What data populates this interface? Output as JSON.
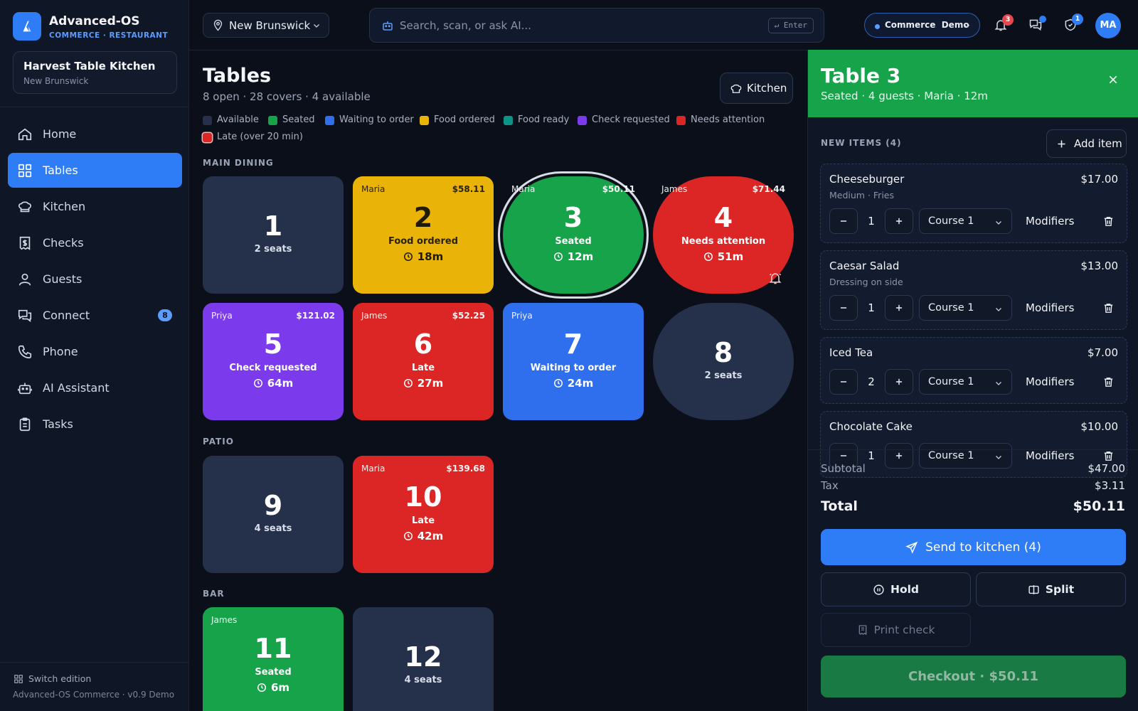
{
  "brand": {
    "name": "Advanced-OS",
    "subtitle": "COMMERCE · RESTAURANT",
    "logo_icon": "logo-mark-icon"
  },
  "location_card": {
    "name": "Harvest Table Kitchen",
    "sub": "New Brunswick"
  },
  "nav": [
    {
      "label": "Home",
      "icon": "home-icon"
    },
    {
      "label": "Tables",
      "icon": "grid-icon",
      "active": true
    },
    {
      "label": "Kitchen",
      "icon": "chef-hat-icon"
    },
    {
      "label": "Checks",
      "icon": "receipt-icon"
    },
    {
      "label": "Guests",
      "icon": "user-icon"
    },
    {
      "label": "Connect",
      "icon": "chat-icon",
      "badge": "8"
    },
    {
      "label": "Phone",
      "icon": "phone-icon"
    },
    {
      "label": "AI Assistant",
      "icon": "robot-icon"
    },
    {
      "label": "Tasks",
      "icon": "clipboard-icon"
    }
  ],
  "sidebar_footer": {
    "switch_edition": "Switch edition",
    "version": "Advanced-OS Commerce · v0.9 Demo"
  },
  "topbar": {
    "location_select": "New Brunswick",
    "search_placeholder": "Search, scan, or ask AI...",
    "search_value": "",
    "enter_hint": "↵ Enter",
    "demo_pill": "Commerce  Demo",
    "notifications_badge": "3",
    "security_badge": "1",
    "avatar_initials": "MA"
  },
  "page": {
    "title": "Tables",
    "subtitle": "8 open · 28 covers · 4 available",
    "kitchen_button": "Kitchen"
  },
  "colors": {
    "available": "#25304a",
    "seated": "#17a34a",
    "waiting": "#2f6fed",
    "food_ordered": "#e9b307",
    "food_ready": "#0d9488",
    "check_requested": "#7c3aed",
    "needs_attention": "#dc2626",
    "late": "#dc2626"
  },
  "legend": [
    {
      "label": "Available",
      "color": "#25304a"
    },
    {
      "label": "Seated",
      "color": "#17a34a"
    },
    {
      "label": "Waiting to order",
      "color": "#2f6fed"
    },
    {
      "label": "Food ordered",
      "color": "#e9b307"
    },
    {
      "label": "Food ready",
      "color": "#0d9488"
    },
    {
      "label": "Check requested",
      "color": "#7c3aed"
    },
    {
      "label": "Needs attention",
      "color": "#dc2626"
    },
    {
      "label": "Late (over 20 min)",
      "color": "#dc2626"
    }
  ],
  "sections": [
    {
      "label": "MAIN DINING"
    },
    {
      "label": "PATIO"
    },
    {
      "label": "BAR"
    }
  ],
  "tables": [
    {
      "number": "1",
      "seats": "2 seats",
      "state": "available"
    },
    {
      "number": "2",
      "server": "Maria",
      "amount": "$58.11",
      "status": "Food ordered",
      "time": "18m",
      "state": "food_ordered"
    },
    {
      "number": "3",
      "server": "Maria",
      "amount": "$50.11",
      "status": "Seated",
      "time": "12m",
      "state": "seated",
      "selected": true
    },
    {
      "number": "4",
      "server": "James",
      "amount": "$71.44",
      "status": "Needs attention",
      "time": "51m",
      "state": "needs_attention",
      "alert_icon": "bell-alert-icon"
    },
    {
      "number": "5",
      "server": "Priya",
      "amount": "$121.02",
      "status": "Check requested",
      "time": "64m",
      "state": "check_requested"
    },
    {
      "number": "6",
      "server": "James",
      "amount": "$52.25",
      "status": "Late",
      "time": "27m",
      "state": "late"
    },
    {
      "number": "7",
      "server": "Priya",
      "amount": "",
      "status": "Waiting to order",
      "time": "24m",
      "state": "waiting"
    },
    {
      "number": "8",
      "seats": "2 seats",
      "state": "available"
    },
    {
      "number": "9",
      "seats": "4 seats",
      "state": "available"
    },
    {
      "number": "10",
      "server": "Maria",
      "amount": "$139.68",
      "status": "Late",
      "time": "42m",
      "state": "late"
    },
    {
      "number": "11",
      "server": "James",
      "amount": "",
      "status": "Seated",
      "time": "6m",
      "state": "seated"
    },
    {
      "number": "12",
      "seats": "4 seats",
      "state": "available"
    }
  ],
  "panel": {
    "title": "Table 3",
    "subtitle": "Seated · 4 guests · Maria · 12m",
    "new_items_label": "NEW ITEMS (4)",
    "add_item": "Add item",
    "items": [
      {
        "name": "Cheeseburger",
        "price": "$17.00",
        "mods": "Medium · Fries",
        "qty": "1",
        "course": "Course 1",
        "modifiers_label": "Modifiers"
      },
      {
        "name": "Caesar Salad",
        "price": "$13.00",
        "mods": "Dressing on side",
        "qty": "1",
        "course": "Course 1",
        "modifiers_label": "Modifiers"
      },
      {
        "name": "Iced Tea",
        "price": "$7.00",
        "mods": "",
        "qty": "2",
        "course": "Course 1",
        "modifiers_label": "Modifiers"
      },
      {
        "name": "Chocolate Cake",
        "price": "$10.00",
        "mods": "",
        "qty": "1",
        "course": "Course 1",
        "modifiers_label": "Modifiers"
      }
    ],
    "subtotal_label": "Subtotal",
    "subtotal": "$47.00",
    "tax_label": "Tax",
    "tax": "$3.11",
    "total_label": "Total",
    "total": "$50.11",
    "send_button": "Send to kitchen (4)",
    "hold_button": "Hold",
    "split_button": "Split",
    "print_button": "Print check",
    "checkout_button": "Checkout · $50.11"
  }
}
